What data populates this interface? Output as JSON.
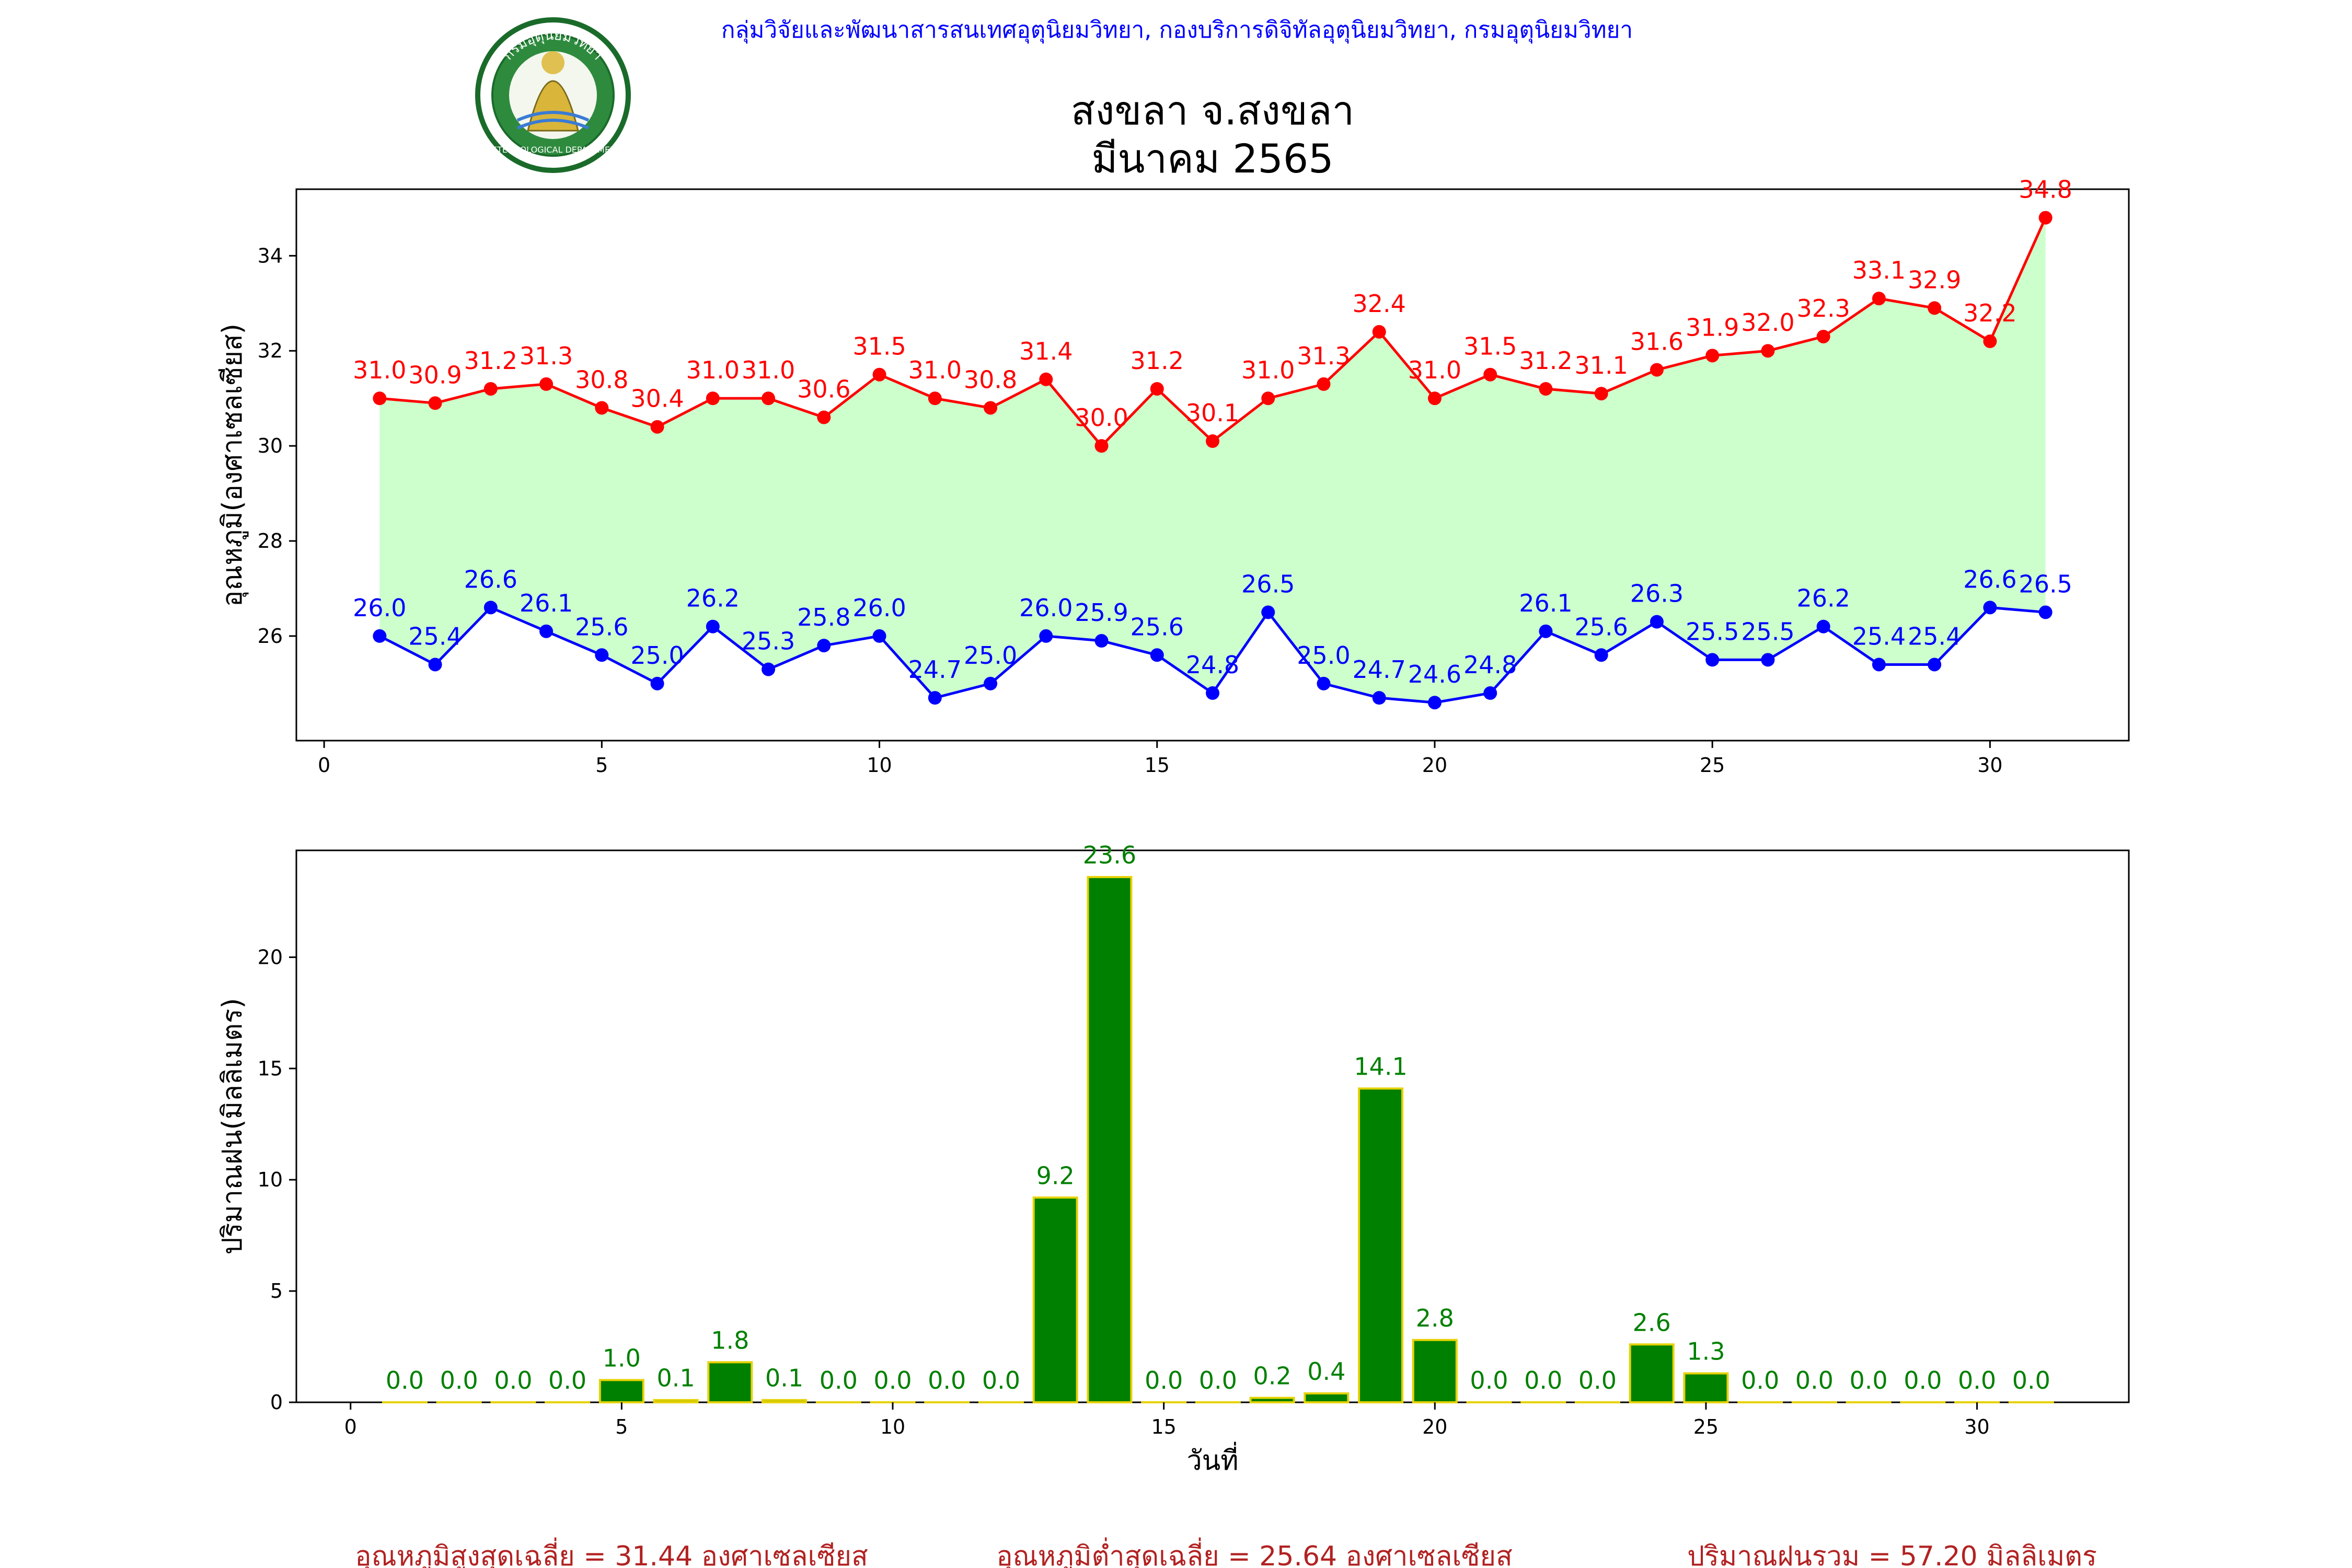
{
  "header": {
    "agency": "กลุ่มวิจัยและพัฒนาสารสนเทศอุตุนิยมวิทยา, กองบริการดิจิทัลอุตุนิยมวิทยา, กรมอุตุนิยมวิทยา",
    "title_line1": "สงขลา จ.สงขลา",
    "title_line2": "มีนาคม 2565",
    "logo_text": "METEOROLOGICAL DEPARTMENT",
    "logo_text_top": "กรมอุตุนิยมวิทยา"
  },
  "colors": {
    "max_temp": "#ff0000",
    "min_temp": "#0000ff",
    "temp_fill": "#ccffcc",
    "rain_bar": "#008000",
    "rain_edge": "#e6d200",
    "rain_label": "#008000",
    "agency_text": "#0000ff",
    "summary_text": "#b22222"
  },
  "chart_data": [
    {
      "type": "line",
      "ylabel": "อุณหภูมิ(องศาเซลเซียส)",
      "xlabel": "",
      "x": [
        1,
        2,
        3,
        4,
        5,
        6,
        7,
        8,
        9,
        10,
        11,
        12,
        13,
        14,
        15,
        16,
        17,
        18,
        19,
        20,
        21,
        22,
        23,
        24,
        25,
        26,
        27,
        28,
        29,
        30,
        31
      ],
      "xlim": [
        -0.5,
        32.5
      ],
      "ylim": [
        23.8,
        35.4
      ],
      "xticks": [
        0,
        5,
        10,
        15,
        20,
        25,
        30
      ],
      "yticks": [
        26,
        28,
        30,
        32,
        34
      ],
      "series": [
        {
          "key": "max",
          "values": [
            31.0,
            30.9,
            31.2,
            31.3,
            30.8,
            30.4,
            31.0,
            31.0,
            30.6,
            31.5,
            31.0,
            30.8,
            31.4,
            30.0,
            31.2,
            30.1,
            31.0,
            31.3,
            32.4,
            31.0,
            31.5,
            31.2,
            31.1,
            31.6,
            31.9,
            32.0,
            32.3,
            33.1,
            32.9,
            32.2,
            34.8
          ]
        },
        {
          "key": "min",
          "values": [
            26.0,
            25.4,
            26.6,
            26.1,
            25.6,
            25.0,
            26.2,
            25.3,
            25.8,
            26.0,
            24.7,
            25.0,
            26.0,
            25.9,
            25.6,
            24.8,
            26.5,
            25.0,
            24.7,
            24.6,
            24.8,
            26.1,
            25.6,
            26.3,
            25.5,
            25.5,
            26.2,
            25.4,
            25.4,
            26.6,
            26.5
          ]
        }
      ],
      "grid": false,
      "legend": "none"
    },
    {
      "type": "bar",
      "ylabel": "ปริมาณฝน(มิลลิเมตร)",
      "xlabel": "วันที่",
      "categories": [
        1,
        2,
        3,
        4,
        5,
        6,
        7,
        8,
        9,
        10,
        11,
        12,
        13,
        14,
        15,
        16,
        17,
        18,
        19,
        20,
        21,
        22,
        23,
        24,
        25,
        26,
        27,
        28,
        29,
        30,
        31
      ],
      "values": [
        0.0,
        0.0,
        0.0,
        0.0,
        1.0,
        0.1,
        1.8,
        0.1,
        0.0,
        0.0,
        0.0,
        0.0,
        9.2,
        23.6,
        0.0,
        0.0,
        0.2,
        0.4,
        14.1,
        2.8,
        0.0,
        0.0,
        0.0,
        2.6,
        1.3,
        0.0,
        0.0,
        0.0,
        0.0,
        0.0,
        0.0
      ],
      "xlim": [
        -1.0,
        32.8
      ],
      "ylim": [
        0,
        24.8
      ],
      "xticks": [
        0,
        5,
        10,
        15,
        20,
        25,
        30
      ],
      "yticks": [
        0,
        5,
        10,
        15,
        20
      ],
      "grid": false,
      "legend": "none"
    }
  ],
  "summary": {
    "avg_max": "อุณหภูมิสูงสุดเฉลี่ย = 31.44 องศาเซลเซียส",
    "avg_min": "อุณหภูมิต่ำสุดเฉลี่ย = 25.64 องศาเซลเซียส",
    "total_rain": "ปริมาณฝนรวม = 57.20 มิลลิเมตร"
  }
}
